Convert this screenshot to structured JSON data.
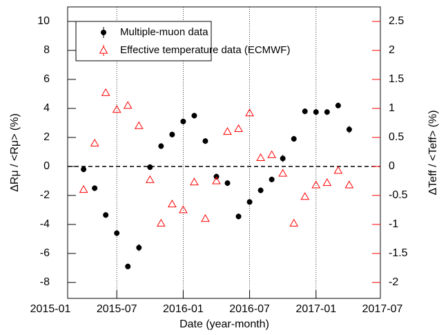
{
  "chart_data": {
    "type": "scatter",
    "x_label": "Date (year-month)",
    "y_label": "ΔRμ / <Rμ> (%)",
    "y2_label": "ΔTeff / <Teff> (%)",
    "x": [
      "2015-04",
      "2015-05",
      "2015-06",
      "2015-07",
      "2015-08",
      "2015-09",
      "2015-10",
      "2015-11",
      "2015-12",
      "2016-01",
      "2016-02",
      "2016-03",
      "2016-04",
      "2016-05",
      "2016-06",
      "2016-07",
      "2016-08",
      "2016-09",
      "2016-10",
      "2016-11",
      "2016-12",
      "2017-01",
      "2017-02",
      "2017-03",
      "2017-04"
    ],
    "series": [
      {
        "name": "Multiple-muon data",
        "color": "#000000",
        "marker": "circle",
        "values": [
          -0.2,
          -1.5,
          -3.35,
          -4.6,
          -6.9,
          -5.6,
          -0.05,
          1.4,
          2.2,
          3.1,
          3.5,
          1.75,
          -0.7,
          -1.15,
          -3.45,
          -2.45,
          -1.65,
          -0.9,
          0.55,
          1.9,
          3.8,
          3.75,
          3.75,
          4.2,
          2.55
        ],
        "errors": [
          0.2,
          0.2,
          0.2,
          0.2,
          0.2,
          0.25,
          0.2,
          0.2,
          0.2,
          0.2,
          0.2,
          0.2,
          0.2,
          0.2,
          0.2,
          0.2,
          0.2,
          0.2,
          0.25,
          0.2,
          0.2,
          0.2,
          0.2,
          0.2,
          0.25
        ]
      },
      {
        "name": "Effective temperature data (ECMWF)",
        "color": "#ff0000",
        "marker": "triangle",
        "axis": "y2",
        "values": [
          -0.4,
          0.4,
          1.27,
          0.98,
          1.05,
          0.7,
          -0.23,
          -0.98,
          -0.65,
          -0.75,
          -0.27,
          -0.9,
          -0.25,
          0.6,
          0.65,
          0.92,
          0.15,
          0.2,
          -0.12,
          -0.98,
          -0.52,
          -0.32,
          -0.28,
          -0.07,
          -0.32
        ]
      }
    ],
    "xticks": [
      "2015-01",
      "2015-07",
      "2016-01",
      "2016-07",
      "2017-01",
      "2017-07"
    ],
    "ylim": [
      -9.1,
      11
    ],
    "yticks": [
      -8,
      -6,
      -4,
      -2,
      0,
      2,
      4,
      6,
      8,
      10
    ],
    "y2lim": [
      -2.275,
      2.75
    ],
    "y2ticks": [
      -2,
      -1.5,
      -1,
      -0.5,
      0,
      0.5,
      1,
      1.5,
      2,
      2.5
    ],
    "y2_color": "#ff0000",
    "legend": "upper left"
  }
}
